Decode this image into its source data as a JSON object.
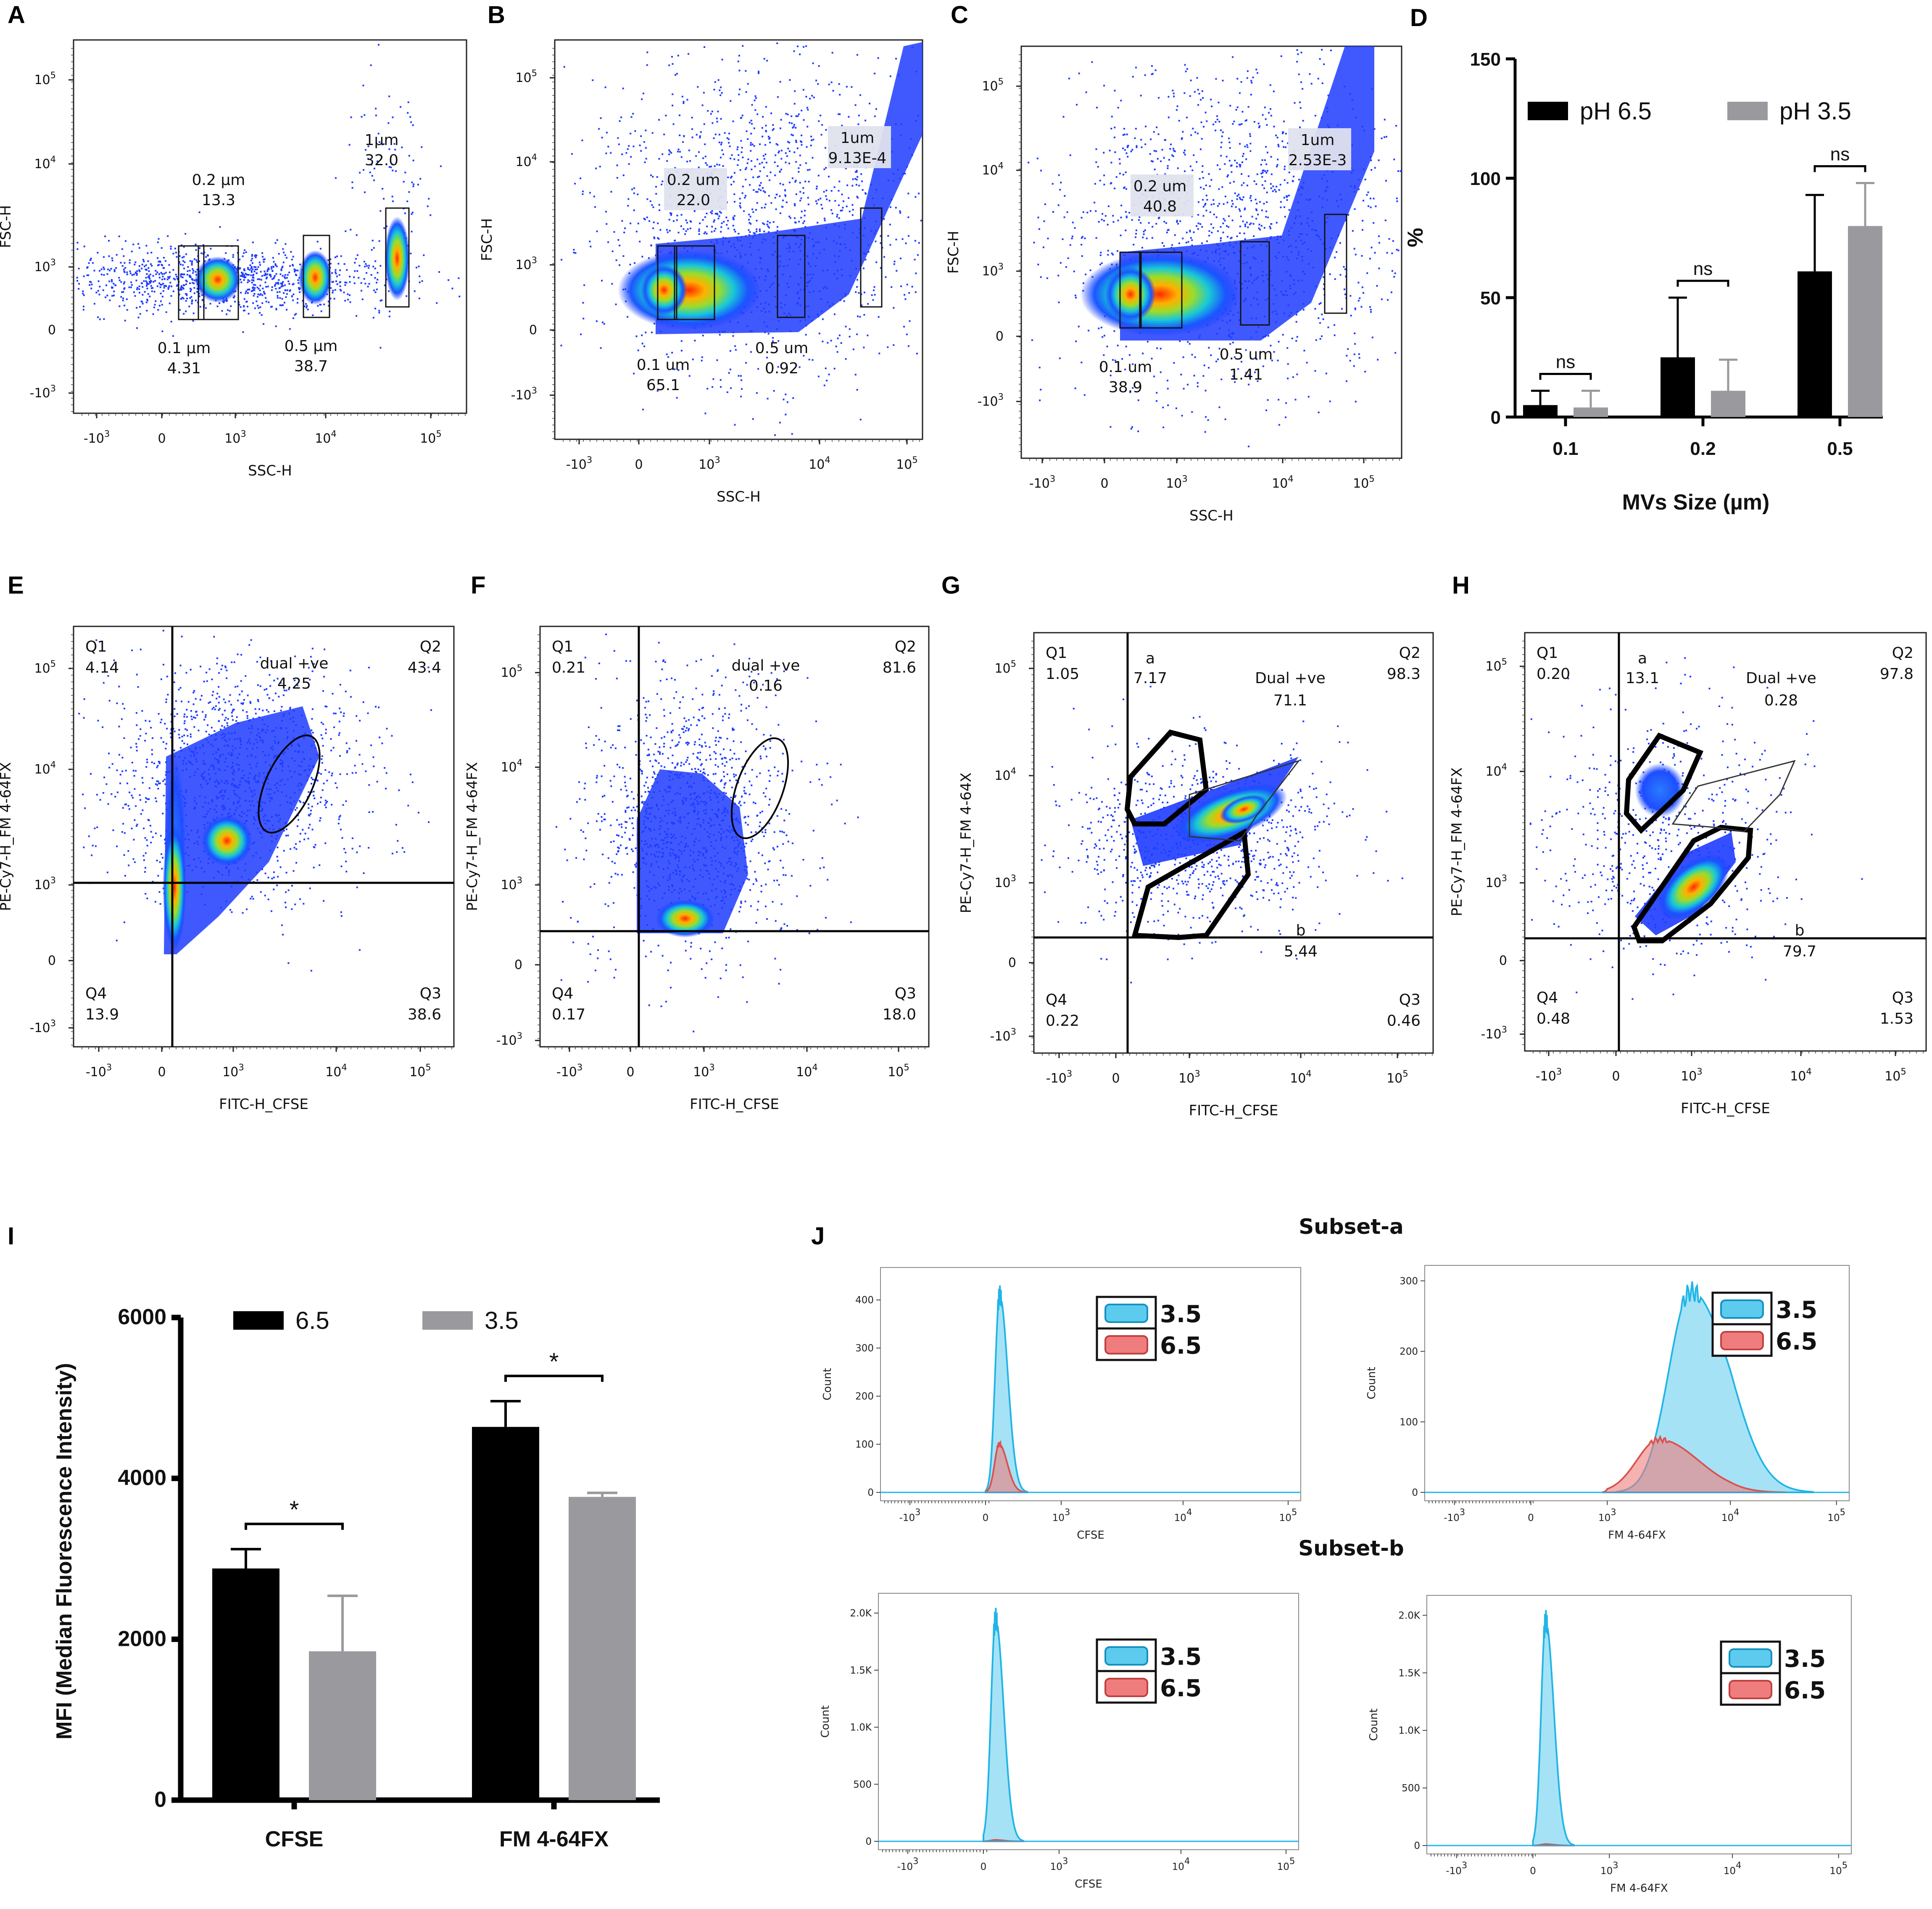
{
  "chart_data": [
    {
      "type": "scatter",
      "panel": "A",
      "xlabel": "SSC-H",
      "ylabel": "FSC-H",
      "x_ticks": [
        "-10^3",
        "0",
        "10^3",
        "10^4",
        "10^5"
      ],
      "y_ticks": [
        "-10^3",
        "0",
        "10^3",
        "10^4",
        "10^5"
      ],
      "gates": [
        {
          "name": "0.1 µm",
          "value": "4.31"
        },
        {
          "name": "0.2 µm",
          "value": "13.3"
        },
        {
          "name": "0.5 µm",
          "value": "38.7"
        },
        {
          "name": "1µm",
          "value": "32.0"
        }
      ]
    },
    {
      "type": "scatter",
      "panel": "B",
      "xlabel": "SSC-H",
      "ylabel": "FSC-H",
      "x_ticks": [
        "-10^3",
        "0",
        "10^3",
        "10^4",
        "10^5"
      ],
      "y_ticks": [
        "-10^3",
        "0",
        "10^3",
        "10^4",
        "10^5"
      ],
      "gates": [
        {
          "name": "0.1 um",
          "value": "65.1"
        },
        {
          "name": "0.2 um",
          "value": "22.0"
        },
        {
          "name": "0.5 um",
          "value": "0.92"
        },
        {
          "name": "1um",
          "value": "9.13E-4"
        }
      ]
    },
    {
      "type": "scatter",
      "panel": "C",
      "xlabel": "SSC-H",
      "ylabel": "FSC-H",
      "x_ticks": [
        "-10^3",
        "0",
        "10^3",
        "10^4",
        "10^5"
      ],
      "y_ticks": [
        "-10^3",
        "0",
        "10^3",
        "10^4",
        "10^5"
      ],
      "gates": [
        {
          "name": "0.1 um",
          "value": "38.9"
        },
        {
          "name": "0.2 um",
          "value": "40.8"
        },
        {
          "name": "0.5 um",
          "value": "1.41"
        },
        {
          "name": "1um",
          "value": "2.53E-3"
        }
      ]
    },
    {
      "type": "bar",
      "panel": "D",
      "categories": [
        "0.1",
        "0.2",
        "0.5"
      ],
      "series": [
        {
          "name": "pH 6.5",
          "color": "#000000",
          "values": [
            5,
            25,
            61
          ],
          "errors": [
            6,
            25,
            32
          ]
        },
        {
          "name": "pH 3.5",
          "color": "#9a9a9e",
          "values": [
            4,
            11,
            80
          ],
          "errors": [
            7,
            13,
            18
          ]
        }
      ],
      "significance": [
        "ns",
        "ns",
        "ns"
      ],
      "xlabel": "MVs Size (µm)",
      "ylabel": "%",
      "ylim": [
        0,
        150
      ],
      "y_ticks": [
        "0",
        "50",
        "100",
        "150"
      ]
    },
    {
      "type": "scatter",
      "panel": "E",
      "xlabel": "FITC-H_CFSE",
      "ylabel": "PE-Cy7-H_FM 4-64FX",
      "x_ticks": [
        "-10^3",
        "0",
        "10^3",
        "10^4",
        "10^5"
      ],
      "y_ticks": [
        "-10^3",
        "0",
        "10^3",
        "10^4",
        "10^5"
      ],
      "quadrants": {
        "Q1": "4.14",
        "Q2": "43.4",
        "Q3": "38.6",
        "Q4": "13.9"
      },
      "gates": [
        {
          "name": "dual +ve",
          "value": "4.25"
        }
      ]
    },
    {
      "type": "scatter",
      "panel": "F",
      "xlabel": "FITC-H_CFSE",
      "ylabel": "PE-Cy7-H_FM 4-64FX",
      "x_ticks": [
        "-10^3",
        "0",
        "10^3",
        "10^4",
        "10^5"
      ],
      "y_ticks": [
        "-10^3",
        "0",
        "10^3",
        "10^4",
        "10^5"
      ],
      "quadrants": {
        "Q1": "0.21",
        "Q2": "81.6",
        "Q3": "18.0",
        "Q4": "0.17"
      },
      "gates": [
        {
          "name": "dual +ve",
          "value": "0.16"
        }
      ]
    },
    {
      "type": "scatter",
      "panel": "G",
      "xlabel": "FITC-H_CFSE",
      "ylabel": "PE-Cy7-H_FM 4-64X",
      "x_ticks": [
        "-10^3",
        "0",
        "10^3",
        "10^4",
        "10^5"
      ],
      "y_ticks": [
        "-10^3",
        "0",
        "10^3",
        "10^4",
        "10^5"
      ],
      "quadrants": {
        "Q1": "1.05",
        "Q2": "98.3",
        "Q3": "0.46",
        "Q4": "0.22"
      },
      "gates": [
        {
          "name": "a",
          "value": "7.17"
        },
        {
          "name": "Dual +ve",
          "value": "71.1"
        },
        {
          "name": "b",
          "value": "5.44"
        }
      ]
    },
    {
      "type": "scatter",
      "panel": "H",
      "xlabel": "FITC-H_CFSE",
      "ylabel": "PE-Cy7-H_FM 4-64FX",
      "x_ticks": [
        "-10^3",
        "0",
        "10^3",
        "10^4",
        "10^5"
      ],
      "y_ticks": [
        "-10^3",
        "0",
        "10^3",
        "10^4",
        "10^5"
      ],
      "quadrants": {
        "Q1": "0.20",
        "Q2": "97.8",
        "Q3": "1.53",
        "Q4": "0.48"
      },
      "gates": [
        {
          "name": "a",
          "value": "13.1"
        },
        {
          "name": "Dual +ve",
          "value": "0.28"
        },
        {
          "name": "b",
          "value": "79.7"
        }
      ]
    },
    {
      "type": "bar",
      "panel": "I",
      "categories": [
        "CFSE",
        "FM 4-64FX"
      ],
      "series": [
        {
          "name": "6.5",
          "color": "#000000",
          "values": [
            2880,
            4640
          ],
          "errors": [
            240,
            320
          ]
        },
        {
          "name": "3.5",
          "color": "#9a9a9e",
          "values": [
            1850,
            3770
          ],
          "errors": [
            690,
            50
          ]
        }
      ],
      "significance": [
        "*",
        "*"
      ],
      "xlabel": "",
      "ylabel": "MFI (Median Fluorescence Intensity)",
      "ylim": [
        0,
        6000
      ],
      "y_ticks": [
        "0",
        "2000",
        "4000",
        "6000"
      ]
    },
    {
      "type": "area",
      "panel": "J",
      "title": "Subset-a",
      "xlabel": "CFSE",
      "ylabel": "Count",
      "y_ticks": [
        "0",
        "100",
        "200",
        "300",
        "400"
      ],
      "ylim": [
        0,
        450
      ],
      "x_ticks": [
        "-10^3",
        "0",
        "10^3",
        "10^4",
        "10^5"
      ],
      "series": [
        {
          "name": "3.5",
          "color": "#5ccbee",
          "peak_x": 0.56,
          "peak": 410
        },
        {
          "name": "6.5",
          "color": "#f07d7d",
          "peak_x": 0.54,
          "peak": 100
        }
      ]
    },
    {
      "type": "area",
      "panel": "J",
      "title": "Subset-a",
      "xlabel": "FM 4-64FX",
      "ylabel": "Count",
      "y_ticks": [
        "0",
        "100",
        "200",
        "300"
      ],
      "ylim": [
        0,
        310
      ],
      "x_ticks": [
        "-10^3",
        "0",
        "10^3",
        "10^4",
        "10^5"
      ],
      "series": [
        {
          "name": "3.5",
          "color": "#5ccbee",
          "peak_x": 3.68,
          "peak": 285
        },
        {
          "name": "6.5",
          "color": "#f07d7d",
          "peak_x": 3.42,
          "peak": 75
        }
      ]
    },
    {
      "type": "area",
      "panel": "J",
      "title": "Subset-b",
      "xlabel": "CFSE",
      "ylabel": "Count",
      "y_ticks": [
        "0",
        "500",
        "1.0K",
        "1.5K",
        "2.0K"
      ],
      "ylim": [
        0,
        2100
      ],
      "x_ticks": [
        "-10^3",
        "0",
        "10^3",
        "10^4",
        "10^5"
      ],
      "series": [
        {
          "name": "3.5",
          "color": "#5ccbee",
          "peak_x": 0.48,
          "peak": 1950
        },
        {
          "name": "6.5",
          "color": "#f07d7d",
          "peak_x": 0.48,
          "peak": 12
        }
      ]
    },
    {
      "type": "area",
      "panel": "J",
      "title": "Subset-b",
      "xlabel": "FM 4-64FX",
      "ylabel": "Count",
      "y_ticks": [
        "0",
        "500",
        "1.0K",
        "1.5K",
        "2.0K"
      ],
      "ylim": [
        0,
        2100
      ],
      "x_ticks": [
        "-10^3",
        "0",
        "10^3",
        "10^4",
        "10^5"
      ],
      "series": [
        {
          "name": "3.5",
          "color": "#5ccbee",
          "peak_x": 0.5,
          "peak": 1950
        },
        {
          "name": "6.5",
          "color": "#f07d7d",
          "peak_x": 0.5,
          "peak": 12
        }
      ]
    }
  ],
  "panel_labels": [
    "A",
    "B",
    "C",
    "D",
    "E",
    "F",
    "G",
    "H",
    "I",
    "J"
  ],
  "subset_titles": [
    "Subset-a",
    "Subset-b"
  ],
  "colors": {
    "black_bar": "#000000",
    "gray_bar": "#9a9a9e",
    "hist_3_5": "#5ccbee",
    "hist_6_5": "#f07d7d"
  }
}
